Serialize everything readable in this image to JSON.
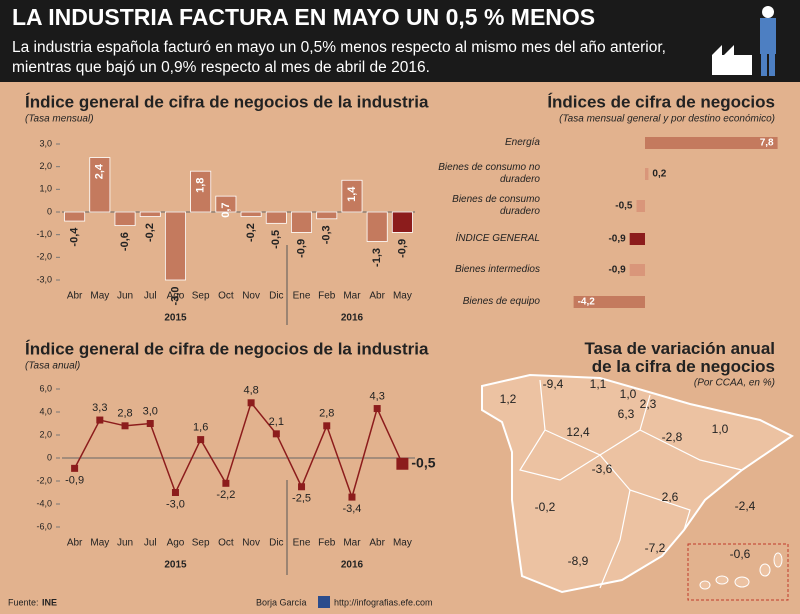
{
  "header": {
    "title": "LA INDUSTRIA FACTURA EN MAYO UN 0,5 % MENOS",
    "subtitle": "La industria española facturó en mayo un 0,5% menos respecto al mismo mes del año anterior, mientras que bajó un 0,9% respecto al mes de abril de 2016."
  },
  "chart_data": [
    {
      "type": "bar",
      "title": "Índice general de cifra de negocios de la industria",
      "subtitle": "(Tasa mensual)",
      "categories": [
        "Abr",
        "May",
        "Jun",
        "Jul",
        "Ago",
        "Sep",
        "Oct",
        "Nov",
        "Dic",
        "Ene",
        "Feb",
        "Mar",
        "Abr",
        "May"
      ],
      "groups": [
        "2015",
        "2016"
      ],
      "values": [
        -0.4,
        2.4,
        -0.6,
        -0.2,
        -3.0,
        1.8,
        0.7,
        -0.2,
        -0.5,
        -0.9,
        -0.3,
        1.4,
        -1.3,
        -0.9
      ],
      "value_labels": [
        "-0,4",
        "2,4",
        "-0,6",
        "-0,2",
        "-3,0",
        "1,8",
        "0,7",
        "-0,2",
        "-0,5",
        "-0,9",
        "-0,3",
        "1,4",
        "-1,3",
        "-0,9"
      ],
      "color": "#c47a5e",
      "highlight_color": "#8c1c1c",
      "ylim": [
        -3,
        3
      ],
      "yticks": [
        {
          "value": 3,
          "label": "3,0"
        },
        {
          "value": 2,
          "label": "2,0"
        },
        {
          "value": 1,
          "label": "1,0"
        },
        0,
        {
          "value": -1,
          "label": "-1,0"
        },
        {
          "value": -2,
          "label": "-2,0"
        },
        {
          "value": -3,
          "label": "-3,0"
        }
      ]
    },
    {
      "type": "hbar",
      "title": "Índices de cifra de negocios",
      "subtitle": "(Tasa mensual general y por destino económico)",
      "categories": [
        "Energía",
        "Bienes de consumo no duradero",
        "Bienes de consumo duradero",
        "ÍNDICE GENERAL",
        "Bienes intermedios",
        "Bienes de equipo"
      ],
      "values": [
        7.8,
        0.2,
        -0.5,
        -0.9,
        -0.9,
        -4.2
      ],
      "value_labels": [
        "7,8",
        "0,2",
        "-0,5",
        "-0,9",
        "-0,9",
        "-4,2"
      ],
      "color": "#c47a5e",
      "highlight_color": "#8c1c1c"
    },
    {
      "type": "line",
      "title": "Índice general de cifra de negocios de la industria",
      "subtitle": "(Tasa anual)",
      "categories": [
        "Abr",
        "May",
        "Jun",
        "Jul",
        "Ago",
        "Sep",
        "Oct",
        "Nov",
        "Dic",
        "Ene",
        "Feb",
        "Mar",
        "Abr",
        "May"
      ],
      "groups": [
        "2015",
        "2016"
      ],
      "values": [
        -0.9,
        3.3,
        2.8,
        3.0,
        -3.0,
        1.6,
        -2.2,
        4.8,
        2.1,
        -2.5,
        2.8,
        -3.4,
        4.3,
        -0.5
      ],
      "value_labels": [
        "-0,9",
        "3,3",
        "2,8",
        "3,0",
        "-3,0",
        "1,6",
        "-2,2",
        "4,8",
        "2,1",
        "-2,5",
        "2,8",
        "-3,4",
        "4,3",
        "-0,5"
      ],
      "color": "#8c1c1c",
      "ylim": [
        -6,
        6
      ],
      "yticks": [
        {
          "value": 6,
          "label": "6,0"
        },
        {
          "value": 4,
          "label": "4,0"
        },
        {
          "value": 2,
          "label": "2,0"
        },
        0,
        {
          "value": -2,
          "label": "-2,0"
        },
        {
          "value": -4,
          "label": "-4,0"
        },
        {
          "value": -6,
          "label": "-6,0"
        }
      ]
    },
    {
      "type": "map",
      "title": "Tasa de variación anual de la cifra de negocios",
      "subtitle": "(Por CCAA, en %)",
      "values": [
        1.2,
        -9.4,
        1.1,
        1.0,
        6.3,
        2.3,
        12.4,
        -2.8,
        1.0,
        -3.6,
        2.6,
        -0.2,
        -2.4,
        -7.2,
        -8.9,
        -0.6
      ],
      "value_labels": [
        "1,2",
        "-9,4",
        "1,1",
        "1,0",
        "6,3",
        "2,3",
        "12,4",
        "-2,8",
        "1,0",
        "-3,6",
        "2,6",
        "-0,2",
        "-2,4",
        "-7,2",
        "-8,9",
        "-0,6"
      ],
      "color": "#ecc2a2"
    }
  ],
  "footer": {
    "source_label": "Fuente:",
    "source": "INE",
    "author": "Borja García",
    "url": "http://infografias.efe.com"
  }
}
